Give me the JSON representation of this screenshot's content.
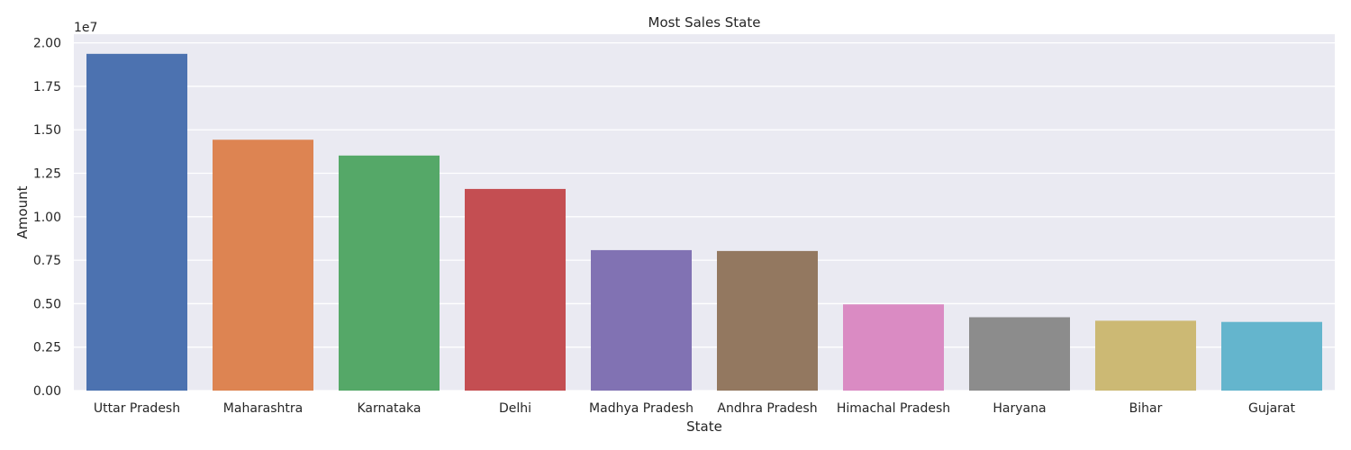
{
  "chart_data": {
    "type": "bar",
    "title": "Most Sales State",
    "xlabel": "State",
    "ylabel": "Amount",
    "y_offset_label": "1e7",
    "y_scale": 10000000,
    "ylim": [
      0,
      20500000
    ],
    "yticks": [
      0,
      2500000,
      5000000,
      7500000,
      10000000,
      12500000,
      15000000,
      17500000,
      20000000
    ],
    "ytick_labels": [
      "0.00",
      "0.25",
      "0.50",
      "0.75",
      "1.00",
      "1.25",
      "1.50",
      "1.75",
      "2.00"
    ],
    "grid": true,
    "categories": [
      "Uttar Pradesh",
      "Maharashtra",
      "Karnataka",
      "Delhi",
      "Madhya Pradesh",
      "Andhra Pradesh",
      "Himachal Pradesh",
      "Haryana",
      "Bihar",
      "Gujarat"
    ],
    "values": [
      19370000,
      14430000,
      13520000,
      11600000,
      8080000,
      8030000,
      4960000,
      4220000,
      4020000,
      3950000
    ],
    "colors": [
      "#4c72b0",
      "#dd8452",
      "#55a868",
      "#c44e52",
      "#8172b3",
      "#937860",
      "#da8bc3",
      "#8c8c8c",
      "#ccb974",
      "#64b5cd"
    ],
    "background": "#eaeaf2"
  }
}
